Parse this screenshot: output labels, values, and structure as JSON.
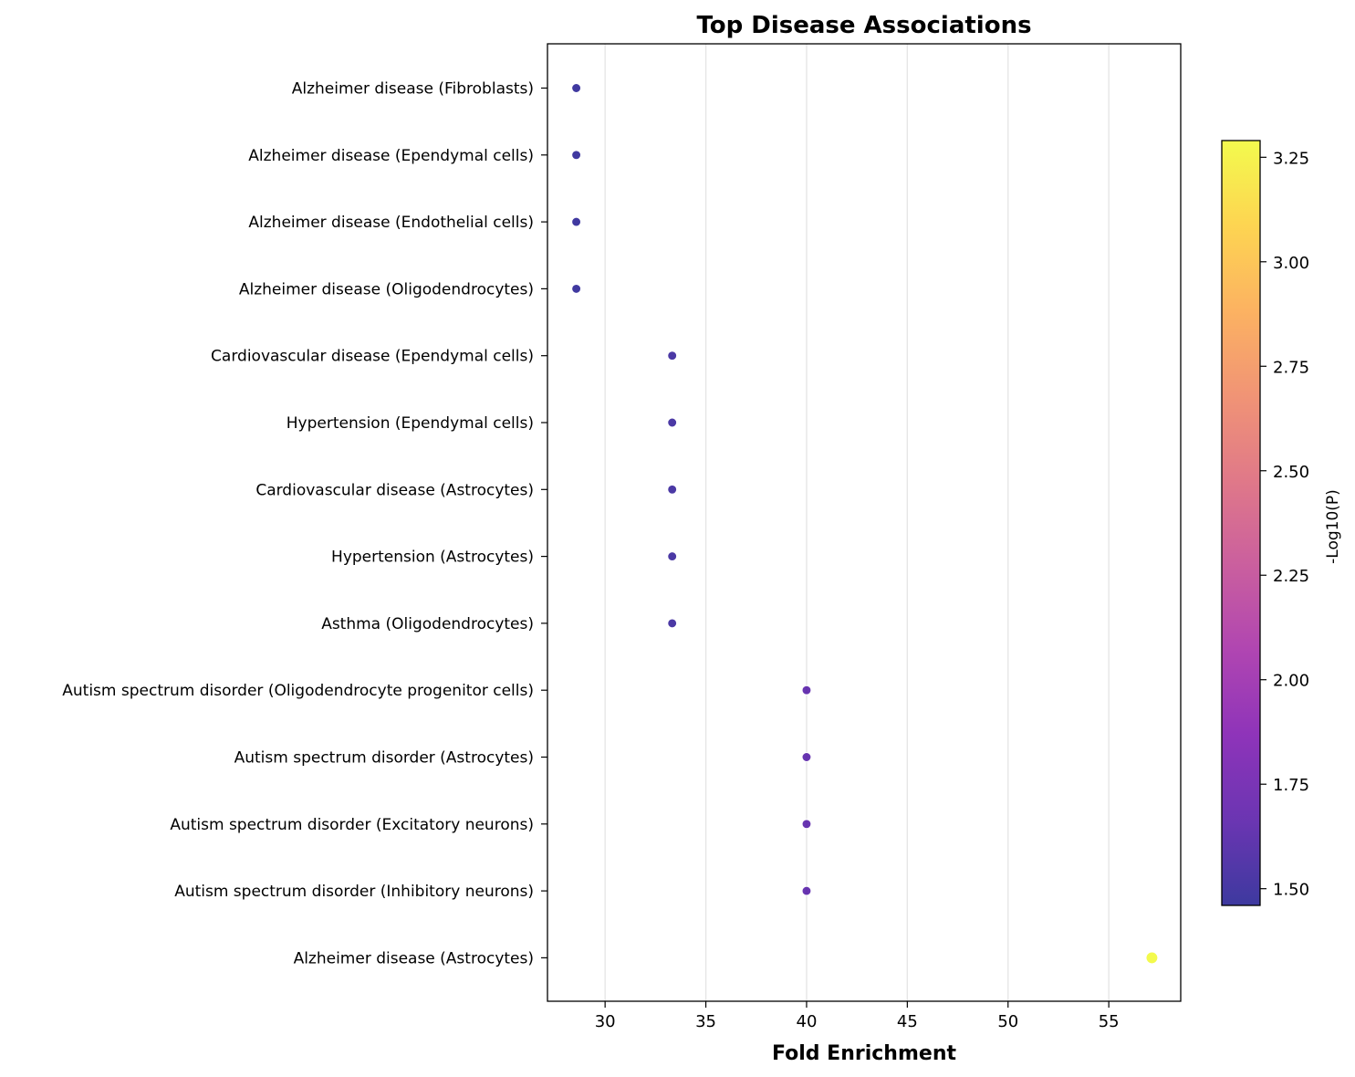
{
  "chart_data": {
    "type": "scatter",
    "title": "Top Disease Associations",
    "xlabel": "Fold Enrichment",
    "xlim": [
      27.14,
      58.57
    ],
    "xticks": [
      30,
      35,
      40,
      45,
      50,
      55
    ],
    "grid": "vertical",
    "categories": [
      "Alzheimer disease (Fibroblasts)",
      "Alzheimer disease (Ependymal cells)",
      "Alzheimer disease (Endothelial cells)",
      "Alzheimer disease (Oligodendrocytes)",
      "Cardiovascular disease (Ependymal cells)",
      "Hypertension (Ependymal cells)",
      "Cardiovascular disease (Astrocytes)",
      "Hypertension (Astrocytes)",
      "Asthma (Oligodendrocytes)",
      "Autism spectrum disorder (Oligodendrocyte progenitor cells)",
      "Autism spectrum disorder (Astrocytes)",
      "Autism spectrum disorder (Excitatory neurons)",
      "Autism spectrum disorder (Inhibitory neurons)",
      "Alzheimer disease (Astrocytes)"
    ],
    "fold_enrichment": [
      28.57,
      28.57,
      28.57,
      28.57,
      33.33,
      33.33,
      33.33,
      33.33,
      33.33,
      40.0,
      40.0,
      40.0,
      40.0,
      57.14
    ],
    "neg_log10_p": [
      1.47,
      1.47,
      1.47,
      1.47,
      1.52,
      1.52,
      1.52,
      1.52,
      1.52,
      1.65,
      1.65,
      1.65,
      1.65,
      3.29
    ],
    "colorbar": {
      "label": "-Log10(P)",
      "range": [
        1.46,
        3.29
      ],
      "ticks": [
        "1.50",
        "1.75",
        "2.00",
        "2.25",
        "2.50",
        "2.75",
        "3.00",
        "3.25"
      ],
      "colormap": "plasma",
      "stops": [
        "#0d0887",
        "#46039f",
        "#7201a8",
        "#9c179e",
        "#bd3786",
        "#d8576b",
        "#ed7953",
        "#fb9f3a",
        "#fdca26",
        "#f0f921"
      ]
    }
  }
}
